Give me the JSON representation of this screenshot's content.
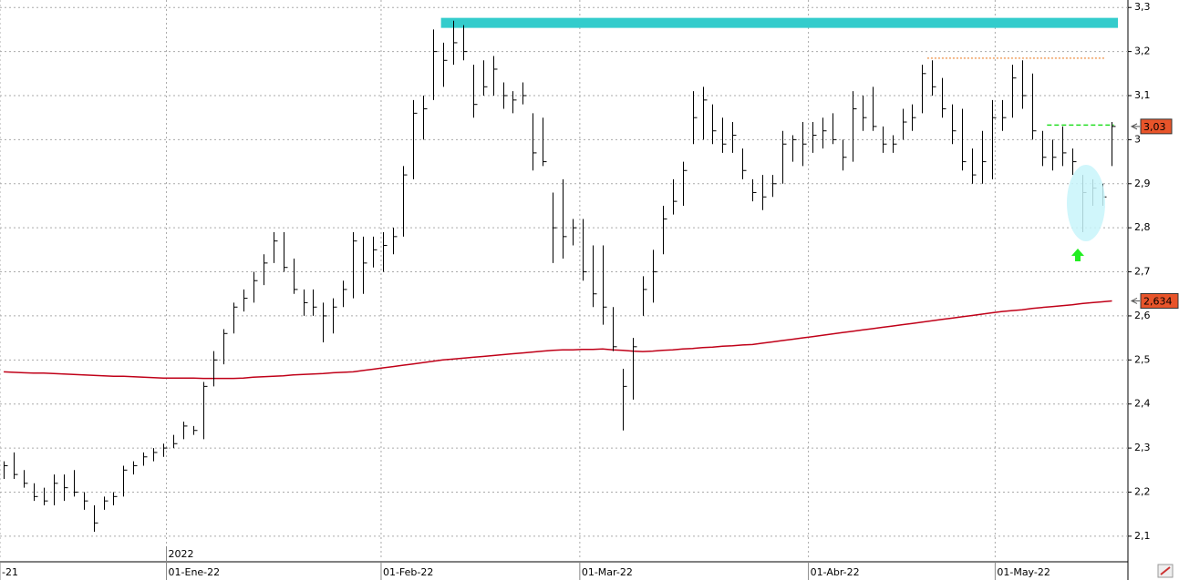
{
  "chart_data": {
    "type": "ohlc",
    "high": [
      2.27,
      2.29,
      2.25,
      2.22,
      2.21,
      2.24,
      2.24,
      2.25,
      2.2,
      2.17,
      2.19,
      2.2,
      2.26,
      2.27,
      2.29,
      2.3,
      2.31,
      2.33,
      2.36,
      2.35,
      2.45,
      2.52,
      2.57,
      2.63,
      2.66,
      2.7,
      2.74,
      2.79,
      2.79,
      2.73,
      2.66,
      2.66,
      2.63,
      2.64,
      2.68,
      2.79,
      2.78,
      2.78,
      2.79,
      2.8,
      2.94,
      3.09,
      3.1,
      3.25,
      3.22,
      3.27,
      3.26,
      3.17,
      3.18,
      3.19,
      3.13,
      3.11,
      3.13,
      3.06,
      3.05,
      2.88,
      2.91,
      2.82,
      2.82,
      2.76,
      2.76,
      2.62,
      2.48,
      2.55,
      2.69,
      2.75,
      2.85,
      2.91,
      2.95,
      3.11,
      3.12,
      3.08,
      3.05,
      3.04,
      2.98,
      2.91,
      2.92,
      2.92,
      3.02,
      3.01,
      3.04,
      3.04,
      3.05,
      3.06,
      3.0,
      3.11,
      3.1,
      3.12,
      3.03,
      3.01,
      3.07,
      3.08,
      3.17,
      3.18,
      3.14,
      3.08,
      3.07,
      2.98,
      3.02,
      3.09,
      3.09,
      3.17,
      3.18,
      3.15,
      3.02,
      3.0,
      3.03,
      2.98,
      2.92,
      2.91,
      2.9,
      3.04
    ],
    "low": [
      2.23,
      2.23,
      2.21,
      2.18,
      2.17,
      2.17,
      2.18,
      2.19,
      2.16,
      2.11,
      2.16,
      2.17,
      2.19,
      2.24,
      2.26,
      2.27,
      2.28,
      2.3,
      2.32,
      2.33,
      2.32,
      2.44,
      2.49,
      2.56,
      2.61,
      2.63,
      2.67,
      2.72,
      2.7,
      2.65,
      2.6,
      2.6,
      2.54,
      2.56,
      2.62,
      2.64,
      2.65,
      2.71,
      2.7,
      2.74,
      2.78,
      2.91,
      3.0,
      3.09,
      3.12,
      3.17,
      3.18,
      3.05,
      3.1,
      3.1,
      3.07,
      3.06,
      3.08,
      2.93,
      2.94,
      2.72,
      2.73,
      2.76,
      2.68,
      2.62,
      2.58,
      2.52,
      2.34,
      2.41,
      2.6,
      2.63,
      2.74,
      2.83,
      2.85,
      2.99,
      3.0,
      2.99,
      2.97,
      2.97,
      2.91,
      2.86,
      2.84,
      2.87,
      2.9,
      2.95,
      2.94,
      2.97,
      2.98,
      2.99,
      2.93,
      2.95,
      3.02,
      3.02,
      2.97,
      2.97,
      3.0,
      3.02,
      3.06,
      3.1,
      3.05,
      2.99,
      2.93,
      2.9,
      2.9,
      2.91,
      3.02,
      3.05,
      3.07,
      3.0,
      2.94,
      2.93,
      2.94,
      2.92,
      2.79,
      2.85,
      2.85,
      2.94
    ],
    "close": [
      2.26,
      2.24,
      2.22,
      2.19,
      2.18,
      2.22,
      2.21,
      2.2,
      2.18,
      2.13,
      2.18,
      2.19,
      2.25,
      2.26,
      2.28,
      2.29,
      2.3,
      2.31,
      2.35,
      2.34,
      2.44,
      2.5,
      2.56,
      2.62,
      2.64,
      2.68,
      2.72,
      2.77,
      2.71,
      2.66,
      2.63,
      2.62,
      2.6,
      2.62,
      2.66,
      2.77,
      2.72,
      2.75,
      2.76,
      2.78,
      2.92,
      3.06,
      3.07,
      3.2,
      3.18,
      3.22,
      3.2,
      3.08,
      3.12,
      3.16,
      3.1,
      3.09,
      3.1,
      2.97,
      2.95,
      2.8,
      2.78,
      2.8,
      2.7,
      2.65,
      2.62,
      2.53,
      2.44,
      2.53,
      2.66,
      2.7,
      2.82,
      2.86,
      2.93,
      3.05,
      3.09,
      3.02,
      2.99,
      3.01,
      2.93,
      2.88,
      2.87,
      2.9,
      2.99,
      3.0,
      2.99,
      3.01,
      3.02,
      3.0,
      2.96,
      3.07,
      3.05,
      3.03,
      2.99,
      2.99,
      3.04,
      3.05,
      3.15,
      3.12,
      3.07,
      3.02,
      2.95,
      2.92,
      2.95,
      3.05,
      3.05,
      3.14,
      3.1,
      3.02,
      2.96,
      2.96,
      2.97,
      2.95,
      2.88,
      2.89,
      2.87,
      3.03
    ],
    "bar_color": "#000000",
    "moving_average": {
      "color": "#c00018",
      "values": [
        2.473,
        2.472,
        2.471,
        2.47,
        2.47,
        2.469,
        2.468,
        2.467,
        2.466,
        2.465,
        2.464,
        2.463,
        2.463,
        2.462,
        2.461,
        2.46,
        2.459,
        2.459,
        2.459,
        2.459,
        2.458,
        2.458,
        2.458,
        2.458,
        2.459,
        2.461,
        2.462,
        2.463,
        2.464,
        2.466,
        2.467,
        2.468,
        2.469,
        2.471,
        2.472,
        2.473,
        2.476,
        2.479,
        2.482,
        2.485,
        2.488,
        2.491,
        2.494,
        2.497,
        2.5,
        2.502,
        2.504,
        2.506,
        2.508,
        2.51,
        2.512,
        2.514,
        2.516,
        2.518,
        2.52,
        2.522,
        2.523,
        2.523,
        2.524,
        2.524,
        2.525,
        2.523,
        2.522,
        2.52,
        2.519,
        2.52,
        2.522,
        2.523,
        2.525,
        2.526,
        2.528,
        2.529,
        2.531,
        2.532,
        2.534,
        2.535,
        2.538,
        2.541,
        2.544,
        2.547,
        2.55,
        2.553,
        2.556,
        2.559,
        2.562,
        2.565,
        2.568,
        2.571,
        2.574,
        2.577,
        2.58,
        2.583,
        2.586,
        2.589,
        2.592,
        2.595,
        2.598,
        2.601,
        2.604,
        2.607,
        2.61,
        2.612,
        2.614,
        2.617,
        2.619,
        2.621,
        2.623,
        2.625,
        2.628,
        2.63,
        2.632,
        2.634
      ]
    },
    "levels": [
      {
        "value": 3.265,
        "from": 43.8,
        "to": 111.6,
        "color": "#33cccc",
        "style": "band"
      },
      {
        "value": 3.185,
        "from": 92.5,
        "to": 110.4,
        "color": "#f0a060",
        "style": "dotted"
      },
      {
        "value": 3.033,
        "from": 104.5,
        "to": 111.2,
        "color": "#22dd22",
        "style": "dashed"
      }
    ],
    "price_labels": [
      {
        "value": 3.03,
        "label": "3,03",
        "color": "#e8542a"
      },
      {
        "value": 2.634,
        "label": "2,634",
        "color": "#e8542a"
      }
    ],
    "xlim": [
      -0.37,
      112.6
    ],
    "xticks": [
      {
        "value": -0.37,
        "label": "-21"
      },
      {
        "value": 16.3,
        "label": "01-Ene-22"
      },
      {
        "value": 37.8,
        "label": "01-Feb-22"
      },
      {
        "value": 57.7,
        "label": "01-Mar-22"
      },
      {
        "value": 80.6,
        "label": "01-Abr-22"
      },
      {
        "value": 99.3,
        "label": "01-May-22"
      }
    ],
    "year_label": {
      "value": 16.3,
      "label": "2022"
    },
    "ylim": [
      2.046,
      3.317
    ],
    "yticks": [
      {
        "value": 3.3,
        "label": "3,3"
      },
      {
        "value": 3.2,
        "label": "3,2"
      },
      {
        "value": 3.1,
        "label": "3,1"
      },
      3,
      {
        "value": 2.9,
        "label": "2,9"
      },
      {
        "value": 2.8,
        "label": "2,8"
      },
      {
        "value": 2.7,
        "label": "2,7"
      },
      {
        "value": 2.6,
        "label": "2,6"
      },
      {
        "value": 2.5,
        "label": "2,5"
      },
      {
        "value": 2.4,
        "label": "2,4"
      },
      {
        "value": 2.3,
        "label": "2,3"
      },
      {
        "value": 2.2,
        "label": "2,2"
      },
      {
        "value": 2.1,
        "label": "2,1"
      }
    ],
    "grid": true
  }
}
